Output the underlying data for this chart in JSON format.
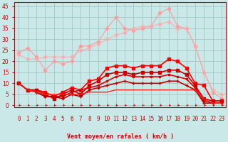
{
  "bg_color": "#cbe8e8",
  "grid_color": "#a0c8c8",
  "x_labels": [
    "0",
    "1",
    "2",
    "3",
    "4",
    "5",
    "6",
    "7",
    "8",
    "9",
    "10",
    "11",
    "12",
    "13",
    "14",
    "15",
    "16",
    "17",
    "18",
    "19",
    "20",
    "21",
    "22",
    "23"
  ],
  "xlabel": "Vent moyen/en rafales ( km/h )",
  "ylim": [
    -1,
    47
  ],
  "xlim": [
    -0.5,
    23.5
  ],
  "yticks": [
    0,
    5,
    10,
    15,
    20,
    25,
    30,
    35,
    40,
    45
  ],
  "series": [
    {
      "color": "#ff9999",
      "alpha": 0.8,
      "lw": 1.0,
      "marker": "D",
      "ms": 2.5,
      "data": [
        24,
        26,
        22,
        16,
        20,
        19,
        20,
        27,
        27,
        29,
        35,
        40,
        35,
        34,
        35,
        36,
        42,
        44,
        36,
        35,
        27,
        15,
        6,
        3
      ]
    },
    {
      "color": "#ffaaaa",
      "alpha": 0.7,
      "lw": 1.0,
      "marker": "D",
      "ms": 2.5,
      "data": [
        23,
        21,
        21,
        22,
        22,
        22,
        22,
        25,
        26,
        28,
        30,
        32,
        33,
        35,
        36,
        36,
        37,
        38,
        35,
        35,
        27,
        15,
        7,
        5
      ]
    },
    {
      "color": "#ff0000",
      "alpha": 1.0,
      "lw": 1.2,
      "marker": "s",
      "ms": 2.5,
      "data": [
        10,
        7,
        7,
        6,
        4,
        6,
        8,
        7,
        11,
        12,
        17,
        18,
        18,
        17,
        18,
        18,
        18,
        21,
        20,
        17,
        10,
        9,
        2,
        2
      ]
    },
    {
      "color": "#cc0000",
      "alpha": 1.0,
      "lw": 1.2,
      "marker": "s",
      "ms": 2.5,
      "data": [
        10,
        7,
        7,
        5,
        3,
        5,
        7,
        5,
        9,
        11,
        14,
        15,
        15,
        14,
        15,
        15,
        15,
        16,
        16,
        14,
        9,
        3,
        2,
        2
      ]
    },
    {
      "color": "#dd0000",
      "alpha": 1.0,
      "lw": 1.2,
      "marker": "s",
      "ms": 2.0,
      "data": [
        10,
        7,
        6,
        4,
        4,
        4,
        6,
        7,
        8,
        9,
        11,
        13,
        14,
        13,
        13,
        13,
        13,
        14,
        13,
        12,
        8,
        2,
        1,
        1
      ]
    },
    {
      "color": "#bb0000",
      "alpha": 1.0,
      "lw": 1.2,
      "marker": "+",
      "ms": 3.5,
      "data": [
        10,
        7,
        6,
        4,
        4,
        3,
        5,
        4,
        7,
        8,
        9,
        10,
        11,
        10,
        10,
        10,
        10,
        11,
        11,
        9,
        7,
        1,
        1,
        1
      ]
    },
    {
      "color": "#ff2222",
      "alpha": 1.0,
      "lw": 1.0,
      "marker": "None",
      "ms": 0,
      "data": [
        10,
        7,
        6,
        5,
        5,
        5,
        5,
        5,
        6,
        6,
        6,
        7,
        7,
        7,
        7,
        7,
        7,
        7,
        7,
        7,
        7,
        3,
        1,
        1
      ]
    }
  ],
  "arrow_color": "#cc0000",
  "axis_fontsize": 6,
  "tick_fontsize": 5.5
}
